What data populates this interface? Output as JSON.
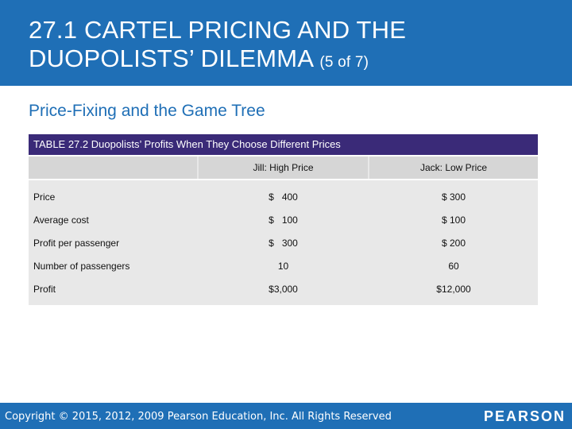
{
  "slide": {
    "title_line1": "27.1 CARTEL PRICING AND THE",
    "title_line2": "DUOPOLISTS’ DILEMMA",
    "title_suffix": "(5 of 7)",
    "subtitle": "Price-Fixing and the Game Tree"
  },
  "table": {
    "caption": "TABLE 27.2 Duopolists’ Profits When They Choose Different Prices",
    "columns": [
      "",
      "Jill: High Price",
      "Jack: Low Price"
    ],
    "rows": [
      {
        "label": "Price",
        "jill": "$   400",
        "jack": "$ 300"
      },
      {
        "label": "Average cost",
        "jill": "$   100",
        "jack": "$ 100"
      },
      {
        "label": "Profit per passenger",
        "jill": "$   300",
        "jack": "$ 200"
      },
      {
        "label": "Number of passengers",
        "jill": "10",
        "jack": "60"
      },
      {
        "label": "Profit",
        "jill": "$3,000",
        "jack": "$12,000"
      }
    ]
  },
  "footer": {
    "copyright": "Copyright © 2015, 2012, 2009 Pearson Education, Inc. All Rights Reserved",
    "brand": "PEARSON"
  },
  "colors": {
    "title_bar": "#1f6fb6",
    "caption_bar": "#3a2a78",
    "table_fill": "#e8e8e8",
    "header_fill": "#d6d6d6"
  }
}
